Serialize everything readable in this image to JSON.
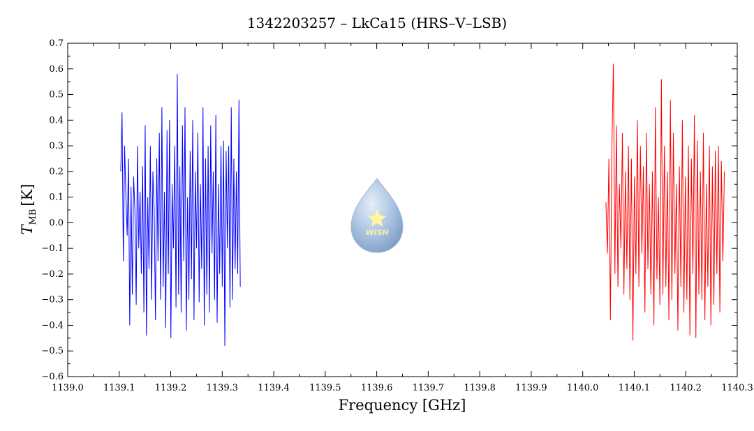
{
  "chart_data": {
    "type": "line",
    "title": "1342203257 – LkCa15 (HRS–V–LSB)",
    "xlabel": "Frequency [GHz]",
    "ylabel_main": "T",
    "ylabel_sub": "MB",
    "ylabel_unit": "[K]",
    "xlim": [
      1139.0,
      1140.3
    ],
    "ylim": [
      -0.6,
      0.7
    ],
    "x_ticks": [
      "1139.0",
      "1139.1",
      "1139.2",
      "1139.3",
      "1139.4",
      "1139.5",
      "1139.6",
      "1139.7",
      "1139.8",
      "1139.9",
      "1140.0",
      "1140.1",
      "1140.2",
      "1140.3"
    ],
    "y_ticks": [
      "-0.6",
      "-0.5",
      "-0.4",
      "-0.3",
      "-0.2",
      "-0.1",
      "0.0",
      "0.1",
      "0.2",
      "0.3",
      "0.4",
      "0.5",
      "0.6",
      "0.7"
    ],
    "series": [
      {
        "color": "#0000ff",
        "x_start": 1139.103,
        "x_end": 1139.335,
        "values": [
          0.2,
          0.43,
          -0.15,
          0.3,
          0.1,
          -0.05,
          0.25,
          -0.4,
          0.14,
          -0.28,
          0.18,
          0.05,
          -0.32,
          0.3,
          -0.1,
          0.12,
          -0.2,
          0.22,
          -0.35,
          0.38,
          -0.44,
          0.1,
          -0.18,
          0.3,
          -0.3,
          0.2,
          0.05,
          -0.38,
          0.25,
          -0.15,
          0.35,
          -0.3,
          0.45,
          -0.25,
          0.12,
          -0.41,
          0.36,
          -0.2,
          0.4,
          -0.45,
          0.15,
          -0.1,
          0.3,
          -0.33,
          0.58,
          -0.28,
          0.22,
          -0.35,
          0.38,
          -0.15,
          0.45,
          -0.42,
          0.1,
          -0.3,
          0.28,
          -0.22,
          0.4,
          -0.38,
          0.2,
          -0.1,
          0.35,
          -0.31,
          0.15,
          -0.18,
          0.45,
          -0.4,
          0.25,
          -0.28,
          0.3,
          -0.35,
          0.38,
          -0.12,
          0.2,
          -0.3,
          0.42,
          -0.39,
          0.15,
          -0.2,
          0.3,
          -0.25,
          0.32,
          -0.48,
          0.28,
          -0.1,
          0.3,
          -0.33,
          0.45,
          -0.3,
          0.25,
          -0.18,
          0.2,
          -0.2,
          0.48,
          -0.25
        ]
      },
      {
        "color": "#ff0000",
        "x_start": 1140.045,
        "x_end": 1140.275,
        "values": [
          0.08,
          -0.12,
          0.25,
          -0.38,
          0.3,
          0.62,
          -0.2,
          0.38,
          -0.25,
          0.15,
          -0.1,
          0.35,
          -0.28,
          0.2,
          -0.18,
          0.3,
          -0.3,
          0.25,
          -0.46,
          0.18,
          -0.2,
          0.4,
          -0.25,
          0.3,
          -0.12,
          0.22,
          -0.35,
          0.35,
          -0.18,
          0.15,
          -0.28,
          0.2,
          -0.4,
          0.45,
          -0.22,
          0.1,
          -0.32,
          0.56,
          -0.28,
          0.3,
          -0.25,
          0.2,
          -0.38,
          0.48,
          -0.3,
          0.35,
          -0.2,
          0.15,
          -0.42,
          0.22,
          -0.25,
          0.4,
          -0.35,
          0.18,
          -0.3,
          0.3,
          -0.44,
          0.25,
          -0.2,
          0.42,
          -0.45,
          0.32,
          -0.28,
          0.2,
          -0.3,
          0.35,
          -0.38,
          0.15,
          -0.25,
          0.3,
          -0.4,
          0.22,
          -0.32,
          0.28,
          -0.2,
          0.3,
          -0.35,
          0.24,
          -0.15,
          0.2
        ]
      }
    ]
  },
  "watermark": {
    "text": "WISH",
    "color": "#8fb3d9"
  }
}
